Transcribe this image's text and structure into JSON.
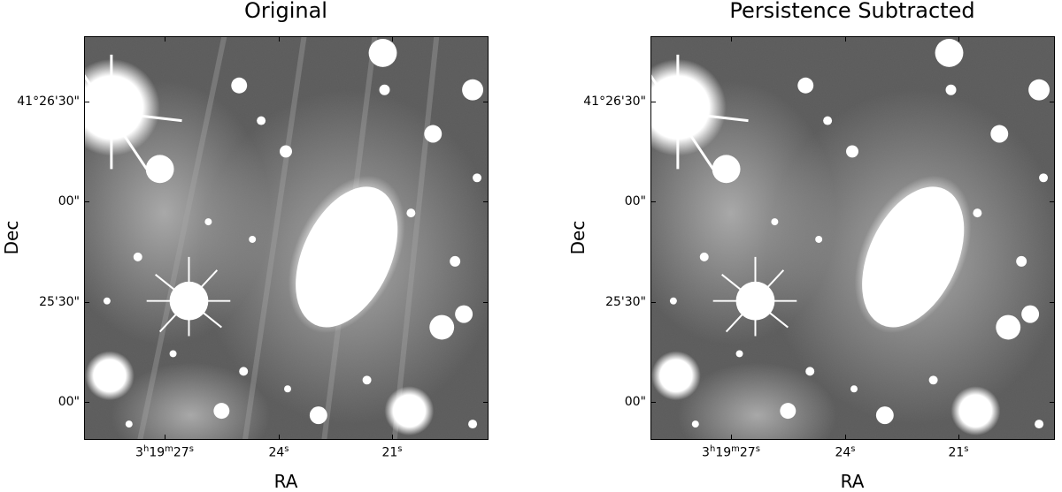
{
  "panels": [
    {
      "title": "Original",
      "xlabel": "RA",
      "ylabel": "Dec",
      "yticks": [
        "41°26'30\"",
        "00\"",
        "25'30\"",
        "00\""
      ],
      "xticks": [
        {
          "base": "3",
          "h": "h",
          "mid": "19",
          "m": "m",
          "end": "27",
          "s": "s"
        },
        {
          "base": "24",
          "s": "s"
        },
        {
          "base": "21",
          "s": "s"
        }
      ]
    },
    {
      "title": "Persistence Subtracted",
      "xlabel": "RA",
      "ylabel": "Dec",
      "yticks": [
        "41°26'30\"",
        "00\"",
        "25'30\"",
        "00\""
      ],
      "xticks": [
        {
          "base": "3",
          "h": "h",
          "mid": "19",
          "m": "m",
          "end": "27",
          "s": "s"
        },
        {
          "base": "24",
          "s": "s"
        },
        {
          "base": "21",
          "s": "s"
        }
      ]
    }
  ]
}
